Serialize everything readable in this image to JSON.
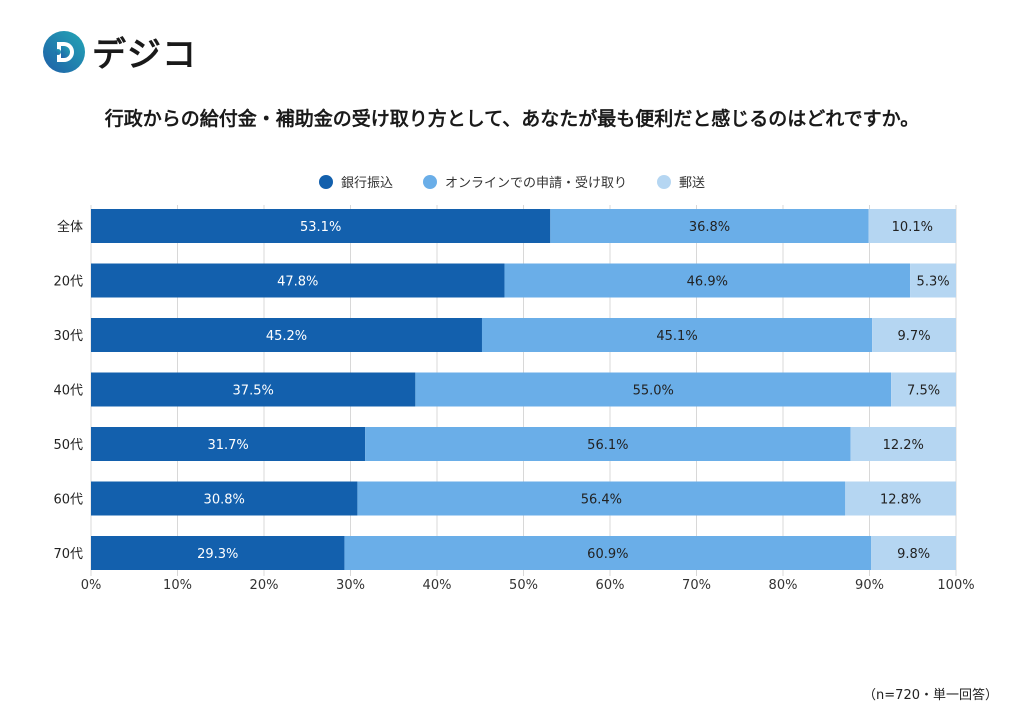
{
  "logo": {
    "text": "デジコ",
    "mark": "D"
  },
  "chart_data": {
    "type": "bar",
    "orientation": "horizontal-stacked-100",
    "title": "行政からの給付金・補助金の受け取り方として、あなたが最も便利だと感じるのはどれですか。",
    "categories": [
      "全体",
      "20代",
      "30代",
      "40代",
      "50代",
      "60代",
      "70代"
    ],
    "series": [
      {
        "name": "銀行振込",
        "color": "#1360ad",
        "values": [
          53.1,
          47.8,
          45.2,
          37.5,
          31.7,
          30.8,
          29.3
        ]
      },
      {
        "name": "オンラインでの申請・受け取り",
        "color": "#6aaee8",
        "values": [
          36.8,
          46.9,
          45.1,
          55.0,
          56.1,
          56.4,
          60.9
        ]
      },
      {
        "name": "郵送",
        "color": "#b5d6f2",
        "values": [
          10.1,
          5.3,
          9.7,
          7.5,
          12.2,
          12.8,
          9.8
        ]
      }
    ],
    "xlim": [
      0,
      100
    ],
    "xticks": [
      "0%",
      "10%",
      "20%",
      "30%",
      "40%",
      "50%",
      "60%",
      "70%",
      "80%",
      "90%",
      "100%"
    ],
    "grid": true,
    "legend_position": "top"
  },
  "note": "（n=720・単一回答）"
}
